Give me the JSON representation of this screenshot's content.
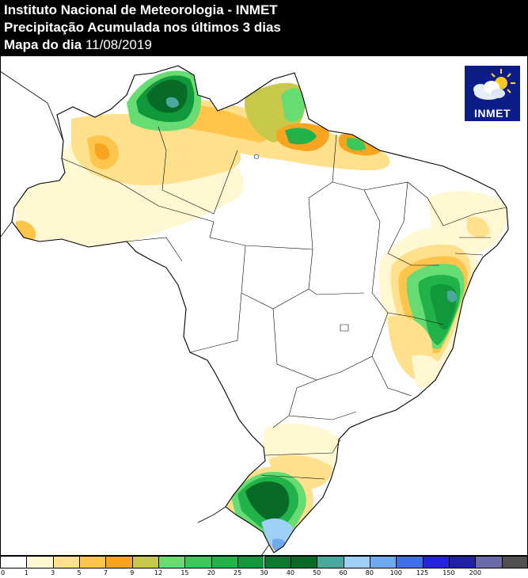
{
  "header": {
    "line1": "Instituto Nacional de Meteorologia - INMET",
    "line2": "Precipitação Acumulada nos últimos 3 dias",
    "line3_prefix": "Mapa do dia ",
    "date": "11/08/2019"
  },
  "logo": {
    "text": "INMET",
    "icon": "cloud-sun-icon"
  },
  "legend": {
    "unit": "",
    "classes": [
      {
        "label": "0",
        "color": "#ffffff"
      },
      {
        "label": "1",
        "color": "#fff8d2"
      },
      {
        "label": "3",
        "color": "#ffe08c"
      },
      {
        "label": "5",
        "color": "#ffc44a"
      },
      {
        "label": "7",
        "color": "#f7a520"
      },
      {
        "label": "9",
        "color": "#c8c84a"
      },
      {
        "label": "12",
        "color": "#66dc72"
      },
      {
        "label": "15",
        "color": "#3ac85a"
      },
      {
        "label": "20",
        "color": "#22b24a"
      },
      {
        "label": "25",
        "color": "#10983a"
      },
      {
        "label": "30",
        "color": "#0a7a30"
      },
      {
        "label": "40",
        "color": "#076a26"
      },
      {
        "label": "50",
        "color": "#4ca89e"
      },
      {
        "label": "60",
        "color": "#9ed0f8"
      },
      {
        "label": "80",
        "color": "#6eaaf0"
      },
      {
        "label": "100",
        "color": "#3e6ee8"
      },
      {
        "label": "125",
        "color": "#2424e0"
      },
      {
        "label": "150",
        "color": "#2020a8"
      },
      {
        "label": "200",
        "color": "#6a6aa8"
      },
      {
        "label": "",
        "color": "#505050"
      }
    ]
  }
}
